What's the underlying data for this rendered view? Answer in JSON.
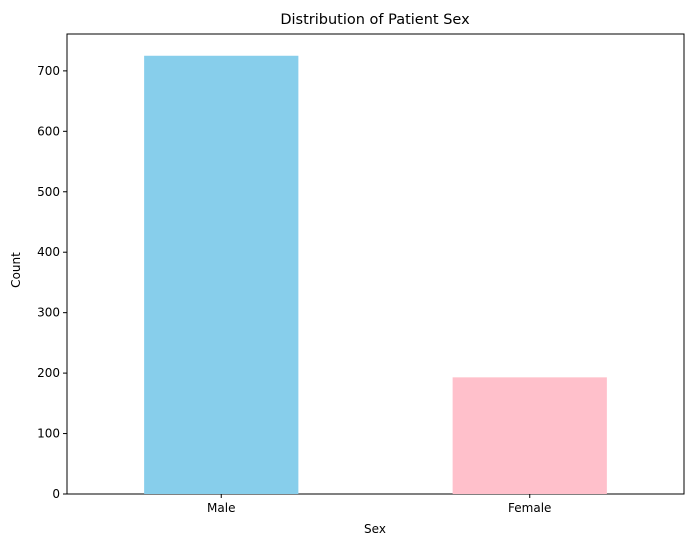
{
  "chart_data": {
    "type": "bar",
    "title": "Distribution of Patient Sex",
    "xlabel": "Sex",
    "ylabel": "Count",
    "categories": [
      "Male",
      "Female"
    ],
    "values": [
      725,
      193
    ],
    "colors": [
      "#87ceeb",
      "#ffc0cb"
    ],
    "ylim": [
      0,
      761
    ],
    "yticks": [
      0,
      100,
      200,
      300,
      400,
      500,
      600,
      700
    ],
    "grid": false,
    "legend": "none"
  }
}
